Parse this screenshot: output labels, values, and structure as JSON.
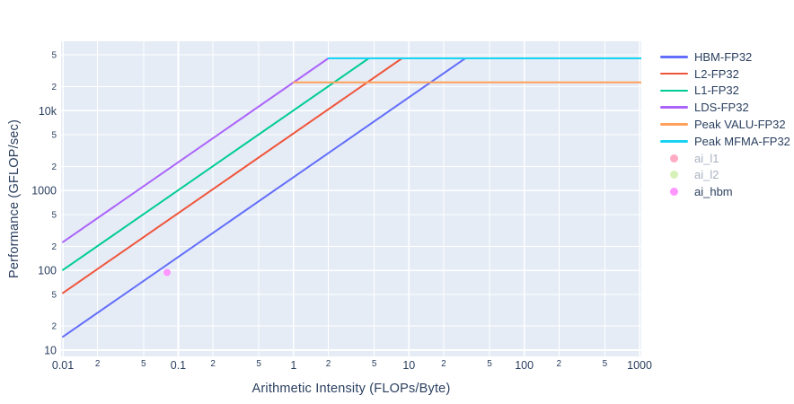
{
  "page": {
    "background": "#ffffff"
  },
  "chart_data": {
    "type": "line",
    "title": "",
    "xlabel": "Arithmetic Intensity (FLOPs/Byte)",
    "ylabel": "Performance (GFLOP/sec)",
    "x_scale": "log",
    "y_scale": "log",
    "xlim": [
      0.0096,
      1035
    ],
    "ylim": [
      8.3,
      74000
    ],
    "x_log_range": [
      -2.016,
      3.015
    ],
    "y_log_range": [
      0.9212,
      4.8695
    ],
    "grid": true,
    "legend_position": "right",
    "plot_bg_color": "#E5ECF6",
    "grid_color": "#FFFFFF",
    "text_color": "#2A3F5F",
    "muted_text_color": "#A9B2C1",
    "x_ticks": [
      {
        "value": 0.01,
        "label": "0.01",
        "major": true
      },
      {
        "value": 0.02,
        "label": "2",
        "major": false
      },
      {
        "value": 0.05,
        "label": "5",
        "major": false
      },
      {
        "value": 0.1,
        "label": "0.1",
        "major": true
      },
      {
        "value": 0.2,
        "label": "2",
        "major": false
      },
      {
        "value": 0.5,
        "label": "5",
        "major": false
      },
      {
        "value": 1,
        "label": "1",
        "major": true
      },
      {
        "value": 2,
        "label": "2",
        "major": false
      },
      {
        "value": 5,
        "label": "5",
        "major": false
      },
      {
        "value": 10,
        "label": "10",
        "major": true
      },
      {
        "value": 20,
        "label": "2",
        "major": false
      },
      {
        "value": 50,
        "label": "5",
        "major": false
      },
      {
        "value": 100,
        "label": "100",
        "major": true
      },
      {
        "value": 200,
        "label": "2",
        "major": false
      },
      {
        "value": 500,
        "label": "5",
        "major": false
      },
      {
        "value": 1000,
        "label": "1000",
        "major": true
      }
    ],
    "y_ticks": [
      {
        "value": 10,
        "label": "10",
        "major": true
      },
      {
        "value": 20,
        "label": "2",
        "major": false
      },
      {
        "value": 50,
        "label": "5",
        "major": false
      },
      {
        "value": 100,
        "label": "100",
        "major": true
      },
      {
        "value": 200,
        "label": "2",
        "major": false
      },
      {
        "value": 500,
        "label": "5",
        "major": false
      },
      {
        "value": 1000,
        "label": "1000",
        "major": true
      },
      {
        "value": 2000,
        "label": "2",
        "major": false
      },
      {
        "value": 5000,
        "label": "5",
        "major": false
      },
      {
        "value": 10000,
        "label": "10k",
        "major": true
      },
      {
        "value": 20000,
        "label": "2",
        "major": false
      },
      {
        "value": 50000,
        "label": "5",
        "major": false
      }
    ],
    "series": [
      {
        "name": "HBM-FP32",
        "type": "line",
        "color": "#636EFA",
        "visible": true,
        "points": [
          [
            0.01,
            14.7
          ],
          [
            30.8,
            45260
          ]
        ]
      },
      {
        "name": "L2-FP32",
        "type": "line",
        "color": "#EF553B",
        "visible": true,
        "points": [
          [
            0.01,
            52
          ],
          [
            8.7,
            45260
          ]
        ]
      },
      {
        "name": "L1-FP32",
        "type": "line",
        "color": "#00CC96",
        "visible": true,
        "points": [
          [
            0.01,
            101
          ],
          [
            4.48,
            45260
          ]
        ]
      },
      {
        "name": "LDS-FP32",
        "type": "line",
        "color": "#AB63FA",
        "visible": true,
        "points": [
          [
            0.01,
            226
          ],
          [
            2.0,
            45260
          ]
        ]
      },
      {
        "name": "Peak VALU-FP32",
        "type": "line",
        "color": "#FFA15A",
        "visible": true,
        "points": [
          [
            1.0,
            22630
          ],
          [
            1075,
            22630
          ]
        ]
      },
      {
        "name": "Peak MFMA-FP32",
        "type": "line",
        "color": "#19D3F3",
        "visible": true,
        "points": [
          [
            2.0,
            45260
          ],
          [
            1075,
            45260
          ]
        ]
      },
      {
        "name": "ai_l1",
        "type": "scatter",
        "color": "#FF6692",
        "visible": false,
        "points": []
      },
      {
        "name": "ai_l2",
        "type": "scatter",
        "color": "#B6E880",
        "visible": false,
        "points": []
      },
      {
        "name": "ai_hbm",
        "type": "scatter",
        "color": "#FF97FF",
        "visible": true,
        "points": [
          [
            0.08,
            94
          ]
        ]
      }
    ]
  }
}
